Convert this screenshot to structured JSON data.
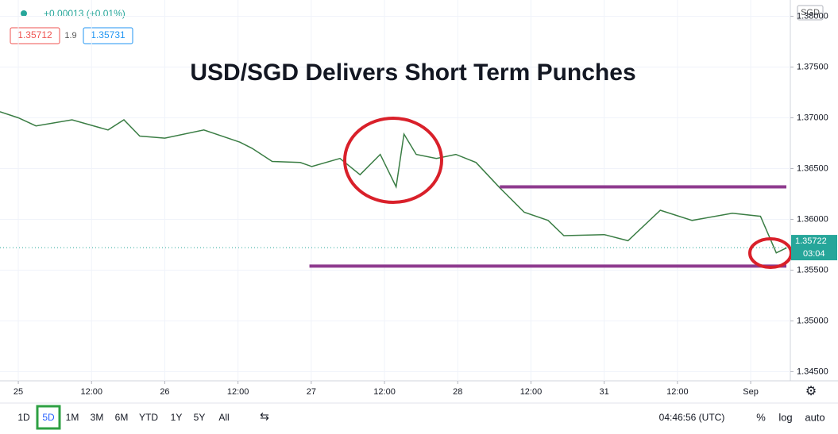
{
  "chart_data": {
    "type": "line",
    "title": "USD/SGD Delivers Short Term Punches",
    "currency": "SGD",
    "change": "+0.00013 (+0.01%)",
    "bid": "1.35712",
    "spread": "1.9",
    "ask": "1.35731",
    "color": "#3a7d44",
    "x": [
      -3,
      0,
      2.9,
      8.8,
      14.7,
      17.3,
      19.9,
      24,
      30.4,
      36.3,
      38.3,
      41.6,
      46.2,
      48.1,
      52.7,
      56,
      59.3,
      61.9,
      63.2,
      65.2,
      68.5,
      71.7,
      75,
      78.9,
      82.9,
      86.8,
      89.4,
      96,
      99.9,
      105.2,
      110.4,
      117,
      121.6,
      124.2,
      125.9
    ],
    "values": [
      1.3706,
      1.37,
      1.3692,
      1.3698,
      1.3688,
      1.3698,
      1.3682,
      1.368,
      1.3688,
      1.3676,
      1.367,
      1.3657,
      1.3656,
      1.3652,
      1.366,
      1.3644,
      1.3664,
      1.3632,
      1.3684,
      1.3664,
      1.366,
      1.3664,
      1.3656,
      1.3631,
      1.3607,
      1.3599,
      1.3584,
      1.3585,
      1.3579,
      1.3609,
      1.3599,
      1.3606,
      1.3603,
      1.3567,
      1.3572
    ],
    "xlim": [
      -3,
      126.5
    ],
    "xticks": [
      {
        "value": 0,
        "label": "25"
      },
      {
        "value": 12,
        "label": "12:00"
      },
      {
        "value": 24,
        "label": "26"
      },
      {
        "value": 36,
        "label": "12:00"
      },
      {
        "value": 48,
        "label": "27"
      },
      {
        "value": 60,
        "label": "12:00"
      },
      {
        "value": 72,
        "label": "28"
      },
      {
        "value": 84,
        "label": "12:00"
      },
      {
        "value": 96,
        "label": "31"
      },
      {
        "value": 108,
        "label": "12:00"
      },
      {
        "value": 120,
        "label": "Sep"
      }
    ],
    "ylim": [
      1.3441,
      1.3816
    ],
    "yticks": [
      {
        "value": 1.345,
        "label": "1.34500"
      },
      {
        "value": 1.35,
        "label": "1.35000"
      },
      {
        "value": 1.355,
        "label": "1.35500"
      },
      {
        "value": 1.36,
        "label": "1.36000"
      },
      {
        "value": 1.365,
        "label": "1.36500"
      },
      {
        "value": 1.37,
        "label": "1.37000"
      },
      {
        "value": 1.375,
        "label": "1.37500"
      },
      {
        "value": 1.38,
        "label": "1.38000"
      }
    ],
    "grid": true,
    "levels": [
      {
        "value": 1.3632,
        "from": 78.9,
        "color": "#8e3a8e"
      },
      {
        "value": 1.3554,
        "from": 47.7,
        "color": "#8e3a8e"
      }
    ],
    "last_price": {
      "value": 1.35722,
      "label": "1.35722"
    },
    "countdown": "03:04"
  },
  "toolbar": {
    "intervals": [
      "1D",
      "5D",
      "1M",
      "3M",
      "6M",
      "YTD",
      "1Y",
      "5Y",
      "All"
    ],
    "selected": 1,
    "time": "04:46:56 (UTC)",
    "options": [
      "%",
      "log",
      "auto"
    ]
  }
}
